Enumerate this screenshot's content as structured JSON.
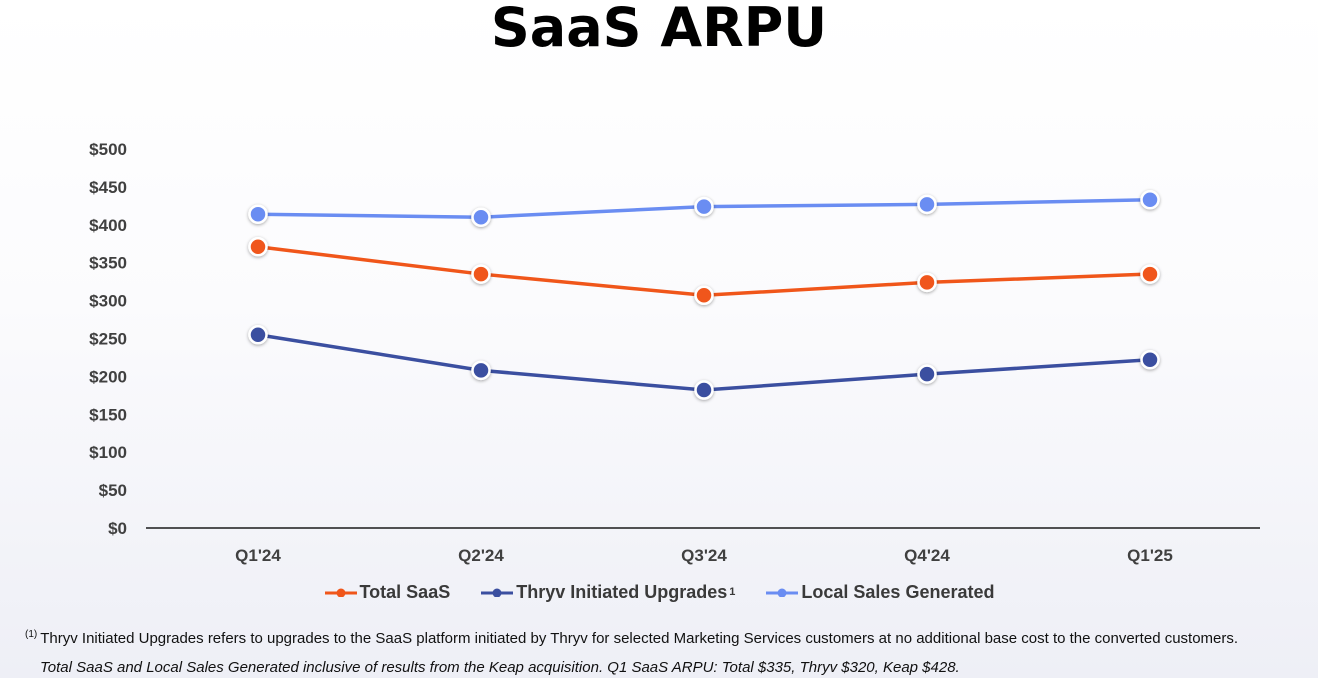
{
  "page": {
    "title": "SaaS ARPU",
    "footnote_marker": "(1)",
    "footnote": "Thryv Initiated Upgrades refers to upgrades to the SaaS platform initiated by Thryv for selected Marketing Services customers at no additional base cost to the converted customers.",
    "note": "Total SaaS and Local Sales Generated inclusive of results from the Keap acquisition. Q1 SaaS ARPU: Total $335, Thryv $320, Keap $428."
  },
  "chart_data": {
    "type": "line",
    "title": "SaaS ARPU",
    "categories": [
      "Q1'24",
      "Q2'24",
      "Q3'24",
      "Q4'24",
      "Q1'25"
    ],
    "y_ticks": [
      0,
      50,
      100,
      150,
      200,
      250,
      300,
      350,
      400,
      450,
      500
    ],
    "y_tick_labels": [
      "$0",
      "$50",
      "$100",
      "$150",
      "$200",
      "$250",
      "$300",
      "$350",
      "$400",
      "$450",
      "$500"
    ],
    "ylim": [
      0,
      500
    ],
    "grid": false,
    "legend_position": "bottom",
    "series": [
      {
        "name": "Total SaaS",
        "color": "#f0561a",
        "values": [
          371,
          335,
          307,
          324,
          335
        ]
      },
      {
        "name": "Thryv Initiated Upgrades",
        "name_sup": "1",
        "color": "#3b4fa0",
        "values": [
          255,
          208,
          182,
          203,
          222
        ]
      },
      {
        "name": "Local Sales Generated",
        "color": "#6a8df2",
        "values": [
          414,
          410,
          424,
          427,
          433
        ]
      }
    ]
  }
}
